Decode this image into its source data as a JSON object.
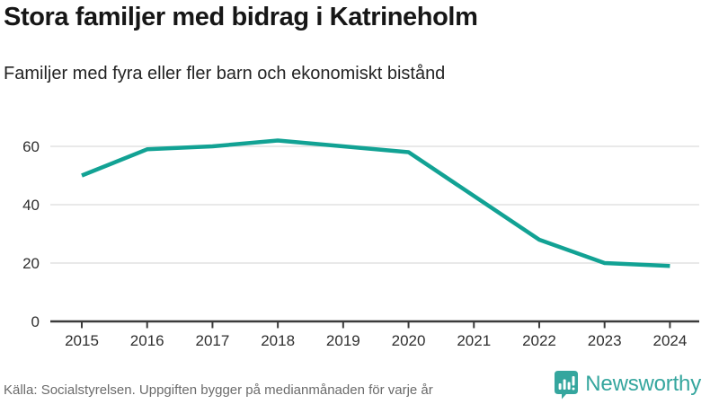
{
  "chart_data": {
    "type": "line",
    "title": "Stora familjer med bidrag i Katrineholm",
    "subtitle": "Familjer med fyra eller fler barn och ekonomiskt bistånd",
    "x": [
      2015,
      2016,
      2017,
      2018,
      2019,
      2020,
      2021,
      2022,
      2023,
      2024
    ],
    "values": [
      50,
      59,
      60,
      62,
      60,
      58,
      43,
      28,
      20,
      19
    ],
    "xlabel": "",
    "ylabel": "",
    "ylim": [
      0,
      70
    ],
    "yticks": [
      0,
      20,
      40,
      60
    ],
    "grid": true,
    "legend": "none",
    "line_color": "#12a294"
  },
  "footer": {
    "source": "Källa: Socialstyrelsen. Uppgiften bygger på medianmånaden för varje år",
    "brand": "Newsworthy"
  },
  "colors": {
    "brand": "#35a69e",
    "axis": "#3b3b3b",
    "grid": "#e2e2e2",
    "tick_text": "#2f2f2f",
    "footer_text": "#6b6b6b"
  }
}
